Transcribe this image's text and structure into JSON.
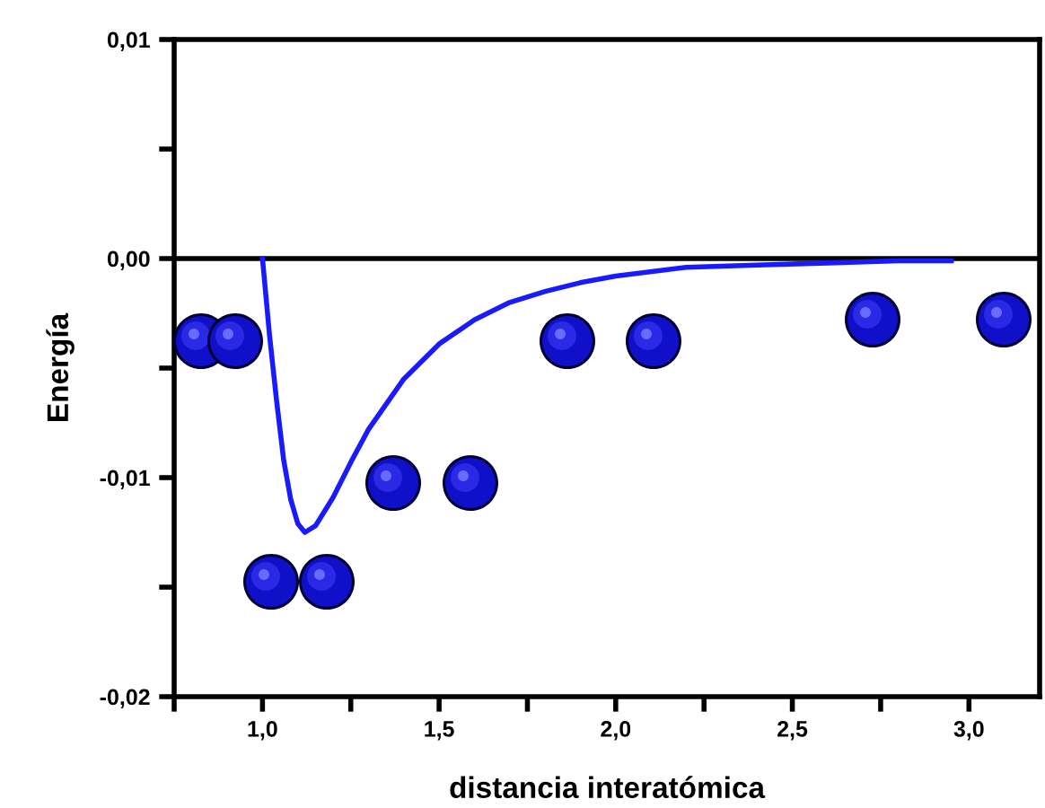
{
  "chart_data": {
    "type": "line",
    "xlabel": "distancia interatómica",
    "ylabel": "Energía",
    "x": [
      1.0,
      1.02,
      1.04,
      1.06,
      1.08,
      1.1,
      1.12,
      1.15,
      1.2,
      1.25,
      1.3,
      1.4,
      1.5,
      1.6,
      1.7,
      1.8,
      1.9,
      2.0,
      2.2,
      2.4,
      2.6,
      2.8,
      2.95
    ],
    "series": [
      {
        "color": "#1a1aff",
        "values": [
          0.0,
          -0.0035,
          -0.0065,
          -0.0092,
          -0.011,
          -0.0121,
          -0.0125,
          -0.0122,
          -0.0109,
          -0.0093,
          -0.0078,
          -0.0055,
          -0.0039,
          -0.0028,
          -0.002,
          -0.0015,
          -0.0011,
          -0.0008,
          -0.0004,
          -0.0003,
          -0.0002,
          -0.0001,
          -0.0001
        ]
      }
    ],
    "xlim": [
      0.75,
      3.2
    ],
    "ylim": [
      -0.02,
      0.01
    ],
    "xticks": [
      {
        "value": 0.75,
        "label": null
      },
      {
        "value": 1.0,
        "label": "1,0"
      },
      {
        "value": 1.25,
        "label": null
      },
      {
        "value": 1.5,
        "label": "1,5"
      },
      {
        "value": 1.75,
        "label": null
      },
      {
        "value": 2.0,
        "label": "2,0"
      },
      {
        "value": 2.25,
        "label": null
      },
      {
        "value": 2.5,
        "label": "2,5"
      },
      {
        "value": 2.75,
        "label": null
      },
      {
        "value": 3.0,
        "label": "3,0"
      }
    ],
    "yticks": [
      {
        "value": -0.02,
        "label": "-0,02"
      },
      {
        "value": -0.015,
        "label": null
      },
      {
        "value": -0.01,
        "label": "-0,01"
      },
      {
        "value": -0.005,
        "label": null
      },
      {
        "value": 0.0,
        "label": "0,00"
      },
      {
        "value": 0.005,
        "label": null
      },
      {
        "value": 0.01,
        "label": "0,01"
      }
    ],
    "ref_lines": [
      {
        "axis": "y",
        "value": 0.0,
        "color": "#000000",
        "line_style": "solid"
      }
    ],
    "grid": false,
    "legend": false,
    "marker": "none",
    "line_style": "solid"
  }
}
